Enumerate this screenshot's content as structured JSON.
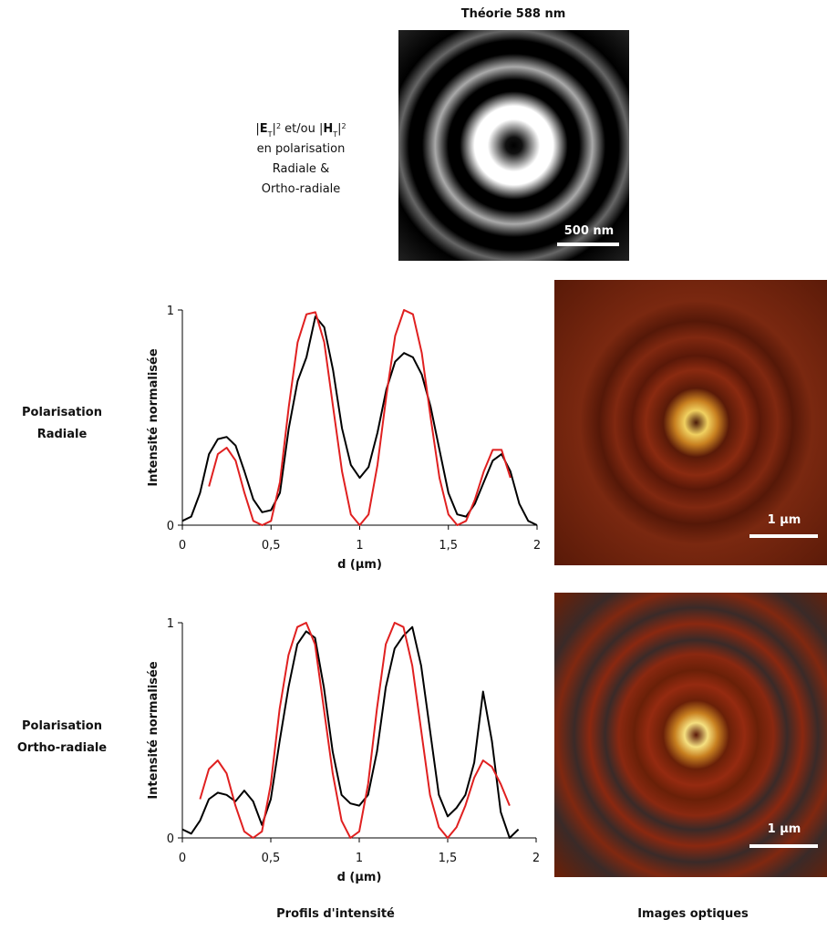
{
  "header": {
    "title": "Théorie 588 nm",
    "scale_bar": "500 nm"
  },
  "description": {
    "parts": [
      "|",
      "E",
      "T",
      "|",
      "2",
      " et/ou |",
      "H",
      "T",
      "|",
      "2"
    ],
    "lines": [
      "en polarisation",
      "Radiale &",
      "Ortho-radiale"
    ]
  },
  "rows": [
    {
      "label_lines": [
        "Polarisation",
        "Radiale"
      ],
      "scale_bar": "1 µm"
    },
    {
      "label_lines": [
        "Polarisation",
        "Ortho-radiale"
      ],
      "scale_bar": "1 µm"
    }
  ],
  "footer": {
    "left": "Profils d'intensité",
    "right": "Images optiques"
  },
  "chart_data": [
    {
      "type": "line",
      "x_label": "d (µm)",
      "y_label": "Intensité normalisée",
      "xlim": [
        0,
        2
      ],
      "ylim": [
        0,
        1
      ],
      "xticks": [
        0,
        {
          "value": 0.5,
          "label": "0,5"
        },
        1,
        {
          "value": 1.5,
          "label": "1,5"
        },
        2
      ],
      "yticks": [
        0,
        1
      ],
      "x": [
        0,
        0.05,
        0.1,
        0.15,
        0.2,
        0.25,
        0.3,
        0.35,
        0.4,
        0.45,
        0.5,
        0.55,
        0.6,
        0.65,
        0.7,
        0.75,
        0.8,
        0.85,
        0.9,
        0.95,
        1.0,
        1.05,
        1.1,
        1.15,
        1.2,
        1.25,
        1.3,
        1.35,
        1.4,
        1.45,
        1.5,
        1.55,
        1.6,
        1.65,
        1.7,
        1.75,
        1.8,
        1.85,
        1.9,
        1.95,
        2.0
      ],
      "series": [
        {
          "color": "#000000",
          "values": [
            0.02,
            0.04,
            0.15,
            0.33,
            0.4,
            0.41,
            0.37,
            0.25,
            0.12,
            0.06,
            0.07,
            0.15,
            0.45,
            0.67,
            0.78,
            0.97,
            0.92,
            0.72,
            0.45,
            0.28,
            0.22,
            0.27,
            0.43,
            0.63,
            0.76,
            0.8,
            0.78,
            0.7,
            0.55,
            0.35,
            0.15,
            0.05,
            0.04,
            0.1,
            0.2,
            0.3,
            0.33,
            0.25,
            0.1,
            0.02,
            0.0
          ]
        },
        {
          "color": "#e02020",
          "values": [
            null,
            null,
            null,
            0.18,
            0.33,
            0.36,
            0.3,
            0.15,
            0.02,
            0.0,
            0.02,
            0.2,
            0.55,
            0.85,
            0.98,
            0.99,
            0.85,
            0.55,
            0.25,
            0.05,
            0.0,
            0.05,
            0.28,
            0.6,
            0.88,
            1.0,
            0.98,
            0.8,
            0.5,
            0.22,
            0.05,
            0.0,
            0.02,
            0.12,
            0.25,
            0.35,
            0.35,
            0.22,
            null,
            null,
            null
          ]
        }
      ]
    },
    {
      "type": "line",
      "x_label": "d (µm)",
      "y_label": "Intensité normalisée",
      "xlim": [
        0,
        2
      ],
      "ylim": [
        0,
        1
      ],
      "xticks": [
        0,
        {
          "value": 0.5,
          "label": "0,5"
        },
        1,
        {
          "value": 1.5,
          "label": "1,5"
        },
        2
      ],
      "yticks": [
        0,
        1
      ],
      "x": [
        0,
        0.05,
        0.1,
        0.15,
        0.2,
        0.25,
        0.3,
        0.35,
        0.4,
        0.45,
        0.5,
        0.55,
        0.6,
        0.65,
        0.7,
        0.75,
        0.8,
        0.85,
        0.9,
        0.95,
        1.0,
        1.05,
        1.1,
        1.15,
        1.2,
        1.25,
        1.3,
        1.35,
        1.4,
        1.45,
        1.5,
        1.55,
        1.6,
        1.65,
        1.7,
        1.75,
        1.8,
        1.85,
        1.9,
        1.95,
        2.0
      ],
      "series": [
        {
          "color": "#000000",
          "values": [
            0.04,
            0.02,
            0.08,
            0.18,
            0.21,
            0.2,
            0.17,
            0.22,
            0.17,
            0.06,
            0.18,
            0.45,
            0.7,
            0.9,
            0.96,
            0.93,
            0.7,
            0.4,
            0.2,
            0.16,
            0.15,
            0.2,
            0.4,
            0.7,
            0.88,
            0.94,
            0.98,
            0.8,
            0.5,
            0.2,
            0.1,
            0.14,
            0.2,
            0.35,
            0.68,
            0.45,
            0.12,
            0.0,
            0.04,
            null,
            null
          ]
        },
        {
          "color": "#e02020",
          "values": [
            null,
            null,
            0.18,
            0.32,
            0.36,
            0.3,
            0.15,
            0.03,
            0.0,
            0.03,
            0.25,
            0.6,
            0.85,
            0.98,
            1.0,
            0.9,
            0.6,
            0.3,
            0.08,
            0.0,
            0.03,
            0.25,
            0.6,
            0.9,
            1.0,
            0.98,
            0.8,
            0.5,
            0.2,
            0.05,
            0.0,
            0.05,
            0.15,
            0.28,
            0.36,
            0.33,
            0.25,
            0.15,
            null,
            null,
            null
          ]
        }
      ]
    }
  ]
}
